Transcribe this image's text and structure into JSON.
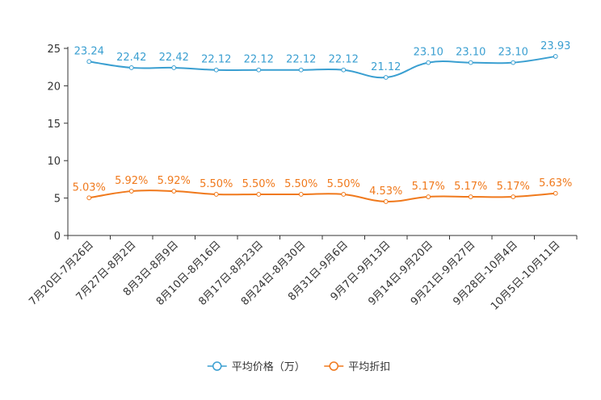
{
  "chart_data": {
    "type": "line",
    "title": "",
    "xlabel": "",
    "ylabel": "",
    "ylim": [
      0,
      25
    ],
    "yticks": [
      0,
      5,
      10,
      15,
      20,
      25
    ],
    "categories": [
      "7月20日-7月26日",
      "7月27日-8月2日",
      "8月3日-8月9日",
      "8月10日-8月16日",
      "8月17日-8月23日",
      "8月24日-8月30日",
      "8月31日-9月6日",
      "9月7日-9月13日",
      "9月14日-9月20日",
      "9月21日-9月27日",
      "9月28日-10月4日",
      "10月5日-10月11日"
    ],
    "series": [
      {
        "name": "平均价格（万）",
        "color": "#3a9fd1",
        "values": [
          23.24,
          22.42,
          22.42,
          22.12,
          22.12,
          22.12,
          22.12,
          21.12,
          23.1,
          23.1,
          23.1,
          23.93
        ],
        "labels": [
          "23.24",
          "22.42",
          "22.42",
          "22.12",
          "22.12",
          "22.12",
          "22.12",
          "21.12",
          "23.10",
          "23.10",
          "23.10",
          "23.93"
        ]
      },
      {
        "name": "平均折扣",
        "color": "#f0791c",
        "values": [
          5.03,
          5.92,
          5.92,
          5.5,
          5.5,
          5.5,
          5.5,
          4.53,
          5.17,
          5.17,
          5.17,
          5.63
        ],
        "labels": [
          "5.03%",
          "5.92%",
          "5.92%",
          "5.50%",
          "5.50%",
          "5.50%",
          "5.50%",
          "4.53%",
          "5.17%",
          "5.17%",
          "5.17%",
          "5.63%"
        ]
      }
    ],
    "legend": "bottom"
  }
}
